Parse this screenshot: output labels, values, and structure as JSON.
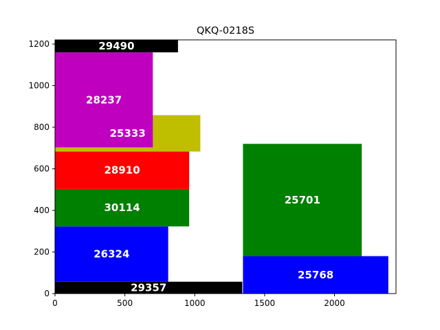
{
  "chart_data": {
    "type": "bar",
    "title": "QKQ-0218S",
    "xlabel": "",
    "ylabel": "",
    "xlim": [
      0,
      2440
    ],
    "ylim": [
      0,
      1220
    ],
    "xticks": [
      0,
      500,
      1000,
      1500,
      2000
    ],
    "yticks": [
      0,
      200,
      400,
      600,
      800,
      1000,
      1200
    ],
    "grid": false,
    "legend": "none",
    "rectangles": [
      {
        "label": "29357",
        "x0": 0,
        "x1": 1340,
        "y0": 0,
        "y1": 57,
        "color": "#000000"
      },
      {
        "label": "26324",
        "x0": 0,
        "x1": 810,
        "y0": 57,
        "y1": 323,
        "color": "#0000ff"
      },
      {
        "label": "30114",
        "x0": 0,
        "x1": 960,
        "y0": 323,
        "y1": 503,
        "color": "#008000"
      },
      {
        "label": "28910",
        "x0": 0,
        "x1": 960,
        "y0": 503,
        "y1": 683,
        "color": "#ff0000"
      },
      {
        "label": "25333",
        "x0": 0,
        "x1": 1040,
        "y0": 683,
        "y1": 858,
        "color": "#bfbf00"
      },
      {
        "label": "28237",
        "x0": 0,
        "x1": 700,
        "y0": 703,
        "y1": 1160,
        "color": "#bf00bf"
      },
      {
        "label": "29490",
        "x0": 0,
        "x1": 880,
        "y0": 1160,
        "y1": 1220,
        "color": "#000000"
      },
      {
        "label": "25768",
        "x0": 1345,
        "x1": 2385,
        "y0": 0,
        "y1": 180,
        "color": "#0000ff"
      },
      {
        "label": "25701",
        "x0": 1345,
        "x1": 2195,
        "y0": 180,
        "y1": 720,
        "color": "#008000"
      }
    ]
  }
}
